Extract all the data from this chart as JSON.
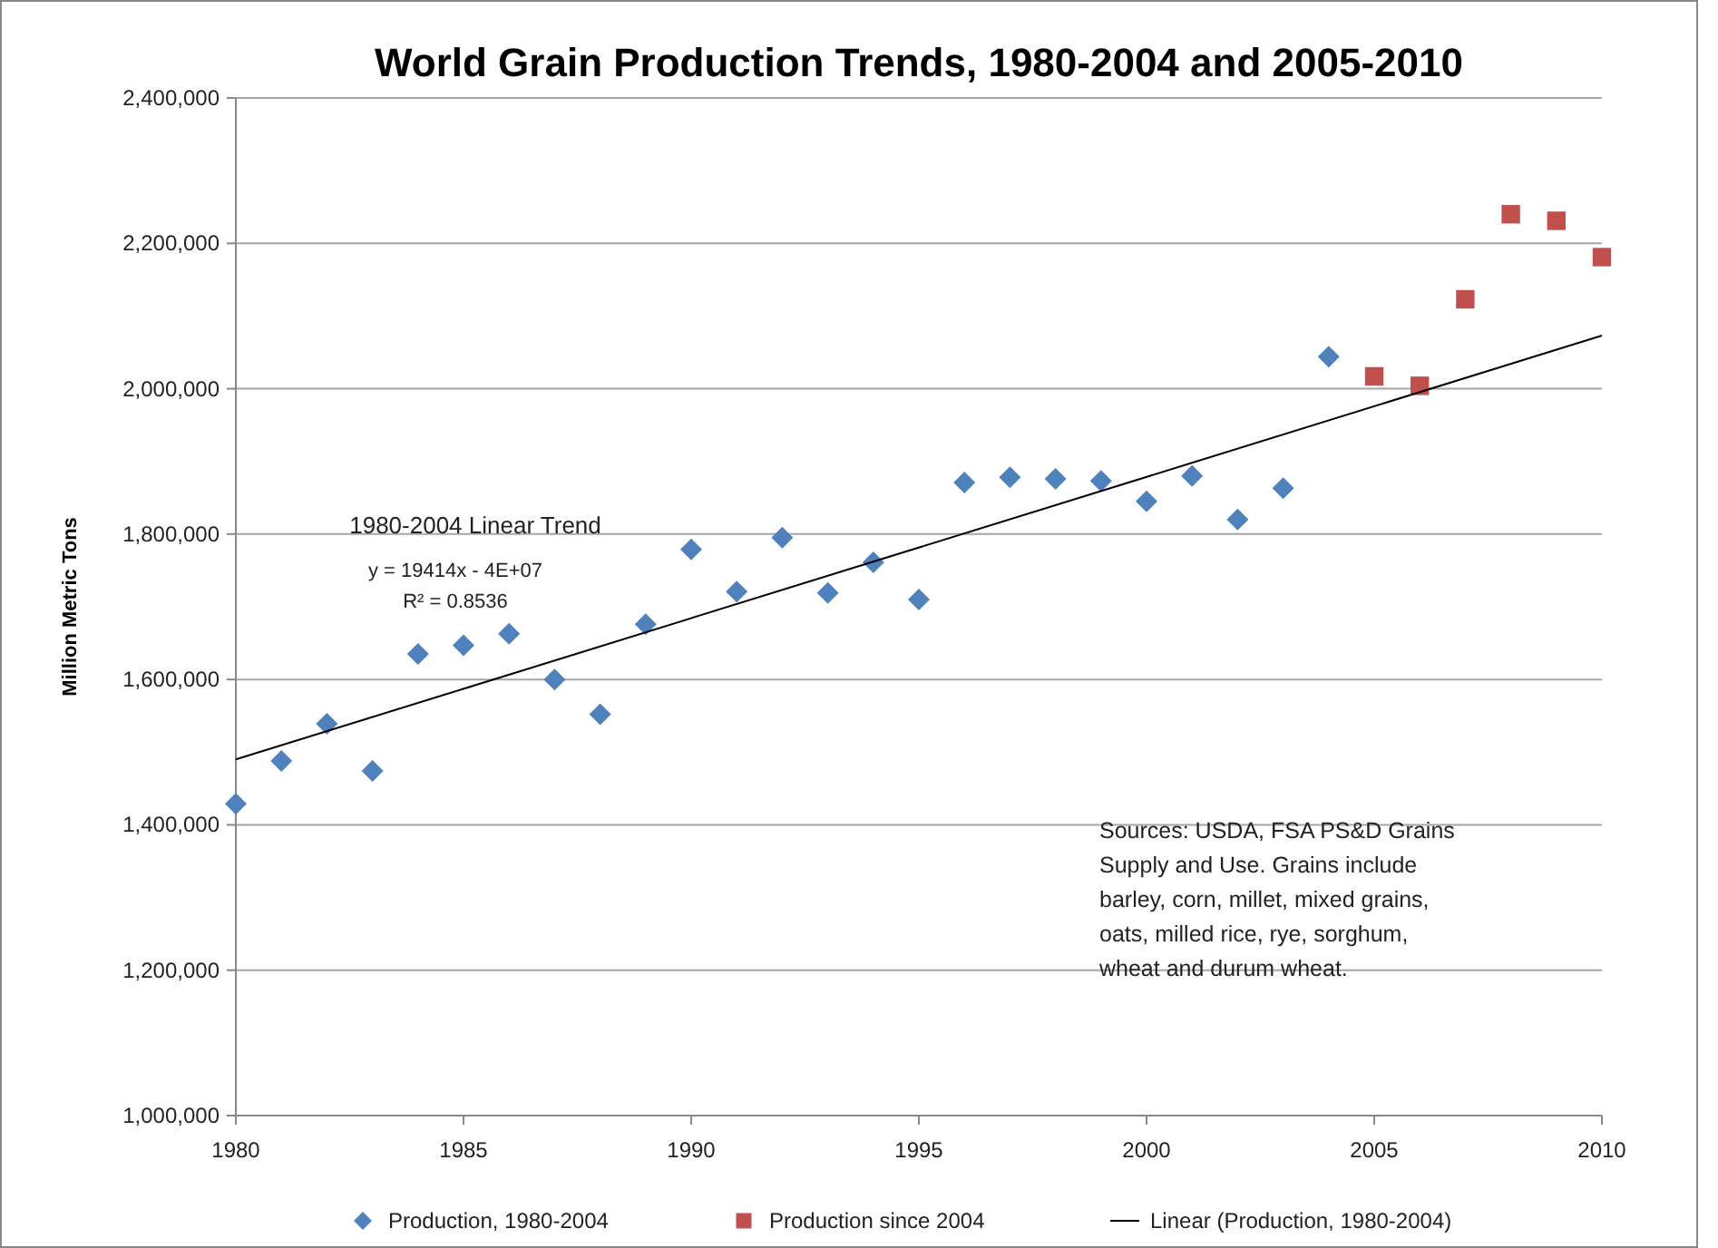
{
  "chart_data": {
    "type": "scatter",
    "title": "World Grain Production Trends, 1980-2004 and 2005-2010",
    "ylabel": "Million Metric Tons",
    "xlim": [
      1980,
      2010
    ],
    "xticks": [
      1980,
      1985,
      1990,
      1995,
      2000,
      2005,
      2010
    ],
    "ylim": [
      1000000,
      2400000
    ],
    "yticks": [
      {
        "value": 1000000,
        "label": "1,000,000"
      },
      {
        "value": 1200000,
        "label": "1,200,000"
      },
      {
        "value": 1400000,
        "label": "1,400,000"
      },
      {
        "value": 1600000,
        "label": "1,600,000"
      },
      {
        "value": 1800000,
        "label": "1,800,000"
      },
      {
        "value": 2000000,
        "label": "2,000,000"
      },
      {
        "value": 2200000,
        "label": "2,200,000"
      },
      {
        "value": 2400000,
        "label": "2,400,000"
      }
    ],
    "grid": "y",
    "legend": "bottom",
    "series": [
      {
        "name": "Production, 1980-2004",
        "marker": "diamond",
        "color": "#4f81bd",
        "x": [
          1980,
          1981,
          1982,
          1983,
          1984,
          1985,
          1986,
          1987,
          1988,
          1989,
          1990,
          1991,
          1992,
          1993,
          1994,
          1995,
          1996,
          1997,
          1998,
          1999,
          2000,
          2001,
          2002,
          2003,
          2004
        ],
        "values": [
          1429000,
          1488000,
          1539000,
          1474000,
          1635000,
          1647000,
          1663000,
          1600000,
          1552000,
          1676000,
          1779000,
          1721000,
          1795000,
          1719000,
          1761000,
          1710000,
          1871000,
          1878000,
          1876000,
          1873000,
          1845000,
          1880000,
          1820000,
          1863000,
          2044000
        ]
      },
      {
        "name": "Production since 2004",
        "marker": "square",
        "color": "#c0504d",
        "x": [
          2005,
          2006,
          2007,
          2008,
          2009,
          2010
        ],
        "values": [
          2017000,
          2004000,
          2123000,
          2240000,
          2231000,
          2181000
        ]
      },
      {
        "name": "Linear (Production, 1980-2004)",
        "type": "line",
        "marker": "none",
        "color": "#000000",
        "x": [
          1980,
          2010
        ],
        "values": [
          1490000,
          2073000
        ]
      }
    ],
    "annotations": [
      "1980-2004 Linear Trend",
      "y = 19414x - 4E+07",
      "R² = 0.8536",
      "Sources: USDA, FSA PS&D Grains Supply and Use. Grains include barley, corn, millet, mixed grains, oats, milled rice, rye, sorghum, wheat and durum wheat."
    ]
  }
}
